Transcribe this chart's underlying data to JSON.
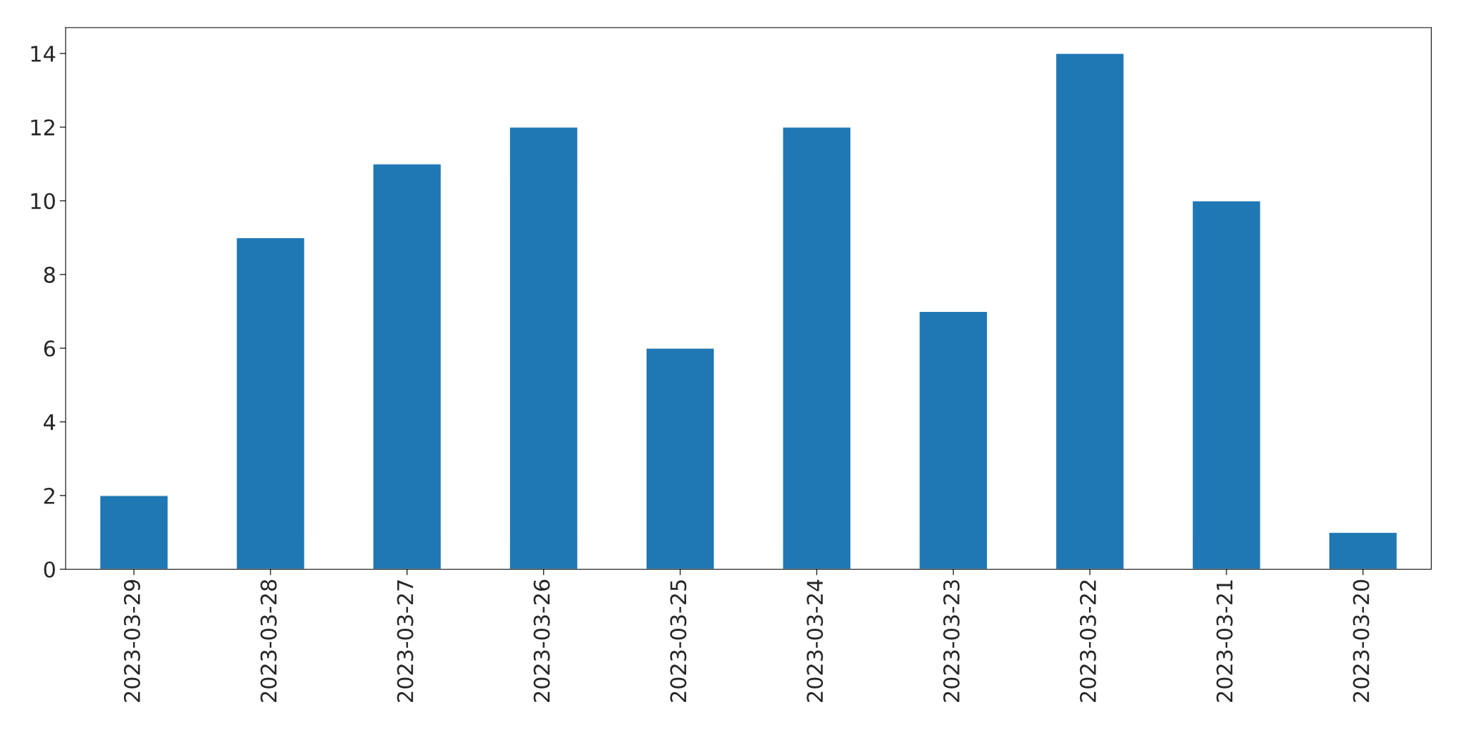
{
  "chart_data": {
    "type": "bar",
    "categories": [
      "2023-03-29",
      "2023-03-28",
      "2023-03-27",
      "2023-03-26",
      "2023-03-25",
      "2023-03-24",
      "2023-03-23",
      "2023-03-22",
      "2023-03-21",
      "2023-03-20"
    ],
    "values": [
      2,
      9,
      11,
      12,
      6,
      12,
      7,
      14,
      10,
      1
    ],
    "color": "#1f77b4",
    "ylim": [
      0,
      14.7
    ],
    "yticks": [
      0,
      2,
      4,
      6,
      8,
      10,
      12,
      14
    ],
    "grid": false
  }
}
